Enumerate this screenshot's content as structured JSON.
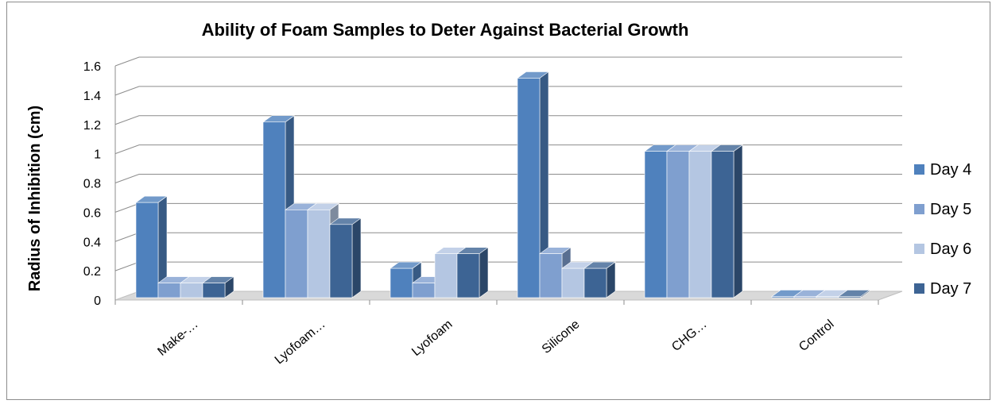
{
  "chart_data": {
    "type": "bar",
    "title": "Ability of Foam Samples to Deter Against Bacterial Growth",
    "ylabel": "Radius of Inhibition (cm)",
    "xlabel": "",
    "ylim": [
      0,
      1.6
    ],
    "yticks": [
      "0",
      "0.2",
      "0.4",
      "0.6",
      "0.8",
      "1",
      "1.2",
      "1.4",
      "1.6"
    ],
    "categories": [
      "Make-…",
      "Lyofoam…",
      "Lyofoam",
      "Silicone",
      "CHG…",
      "Control"
    ],
    "series": [
      {
        "name": "Day 4",
        "color": "#4f81bd",
        "values": [
          0.65,
          1.2,
          0.2,
          1.5,
          1.0,
          0
        ]
      },
      {
        "name": "Day 5",
        "color": "#7f9fcf",
        "values": [
          0.1,
          0.6,
          0.1,
          0.3,
          1.0,
          0
        ]
      },
      {
        "name": "Day 6",
        "color": "#b4c6e2",
        "values": [
          0.1,
          0.6,
          0.3,
          0.2,
          1.0,
          0
        ]
      },
      {
        "name": "Day 7",
        "color": "#3d6494",
        "values": [
          0.1,
          0.5,
          0.3,
          0.2,
          1.0,
          0
        ]
      }
    ],
    "grid": true,
    "legend": "right",
    "style": "3d-clustered-column"
  }
}
